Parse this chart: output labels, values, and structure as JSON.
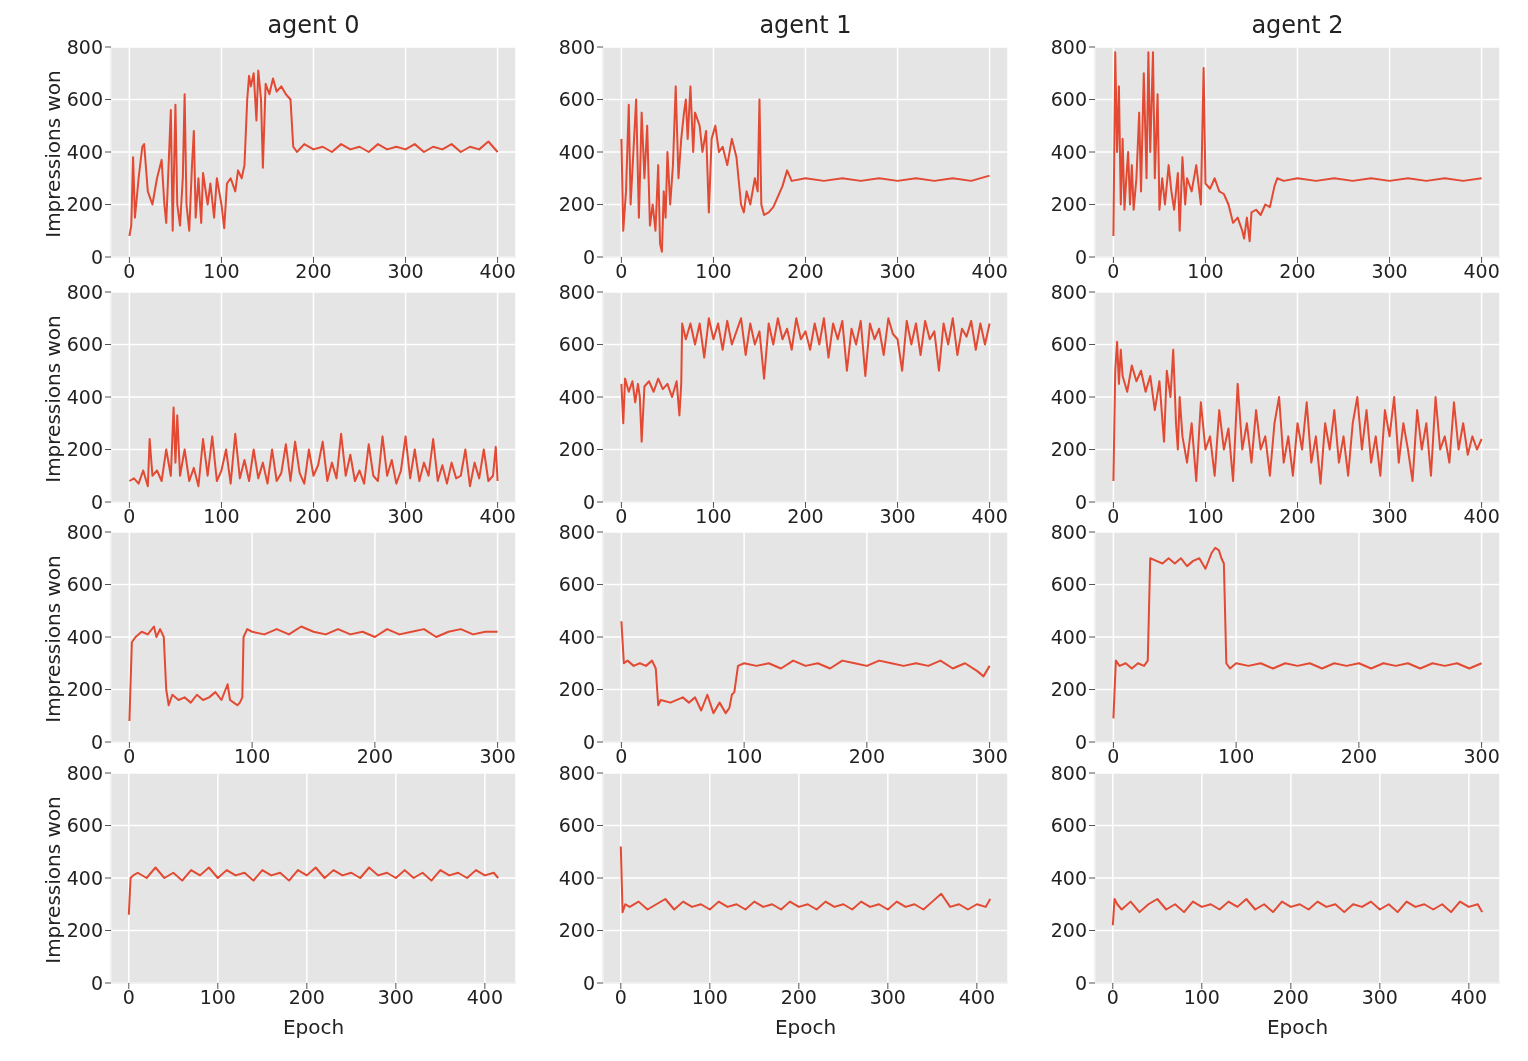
{
  "chart_data": [
    {
      "type": "line",
      "title": "agent 0",
      "ylabel": "Impressions won",
      "color": "#e24a33",
      "xlim": [
        -20,
        420
      ],
      "xticks": [
        0,
        100,
        200,
        300,
        400
      ],
      "ylim": [
        0,
        800
      ],
      "yticks": [
        0,
        200,
        400,
        600,
        800
      ],
      "grid": true,
      "x": [
        0,
        2,
        4,
        6,
        10,
        14,
        16,
        20,
        25,
        30,
        35,
        38,
        40,
        42,
        45,
        47,
        50,
        52,
        55,
        58,
        60,
        62,
        65,
        68,
        70,
        72,
        75,
        78,
        80,
        85,
        88,
        92,
        95,
        100,
        103,
        106,
        110,
        115,
        118,
        122,
        125,
        128,
        130,
        132,
        135,
        138,
        140,
        143,
        145,
        148,
        152,
        156,
        160,
        165,
        170,
        175,
        178,
        182,
        190,
        200,
        210,
        220,
        230,
        240,
        250,
        260,
        270,
        280,
        290,
        300,
        310,
        320,
        330,
        340,
        350,
        360,
        370,
        380,
        390,
        400
      ],
      "values": [
        80,
        120,
        380,
        150,
        300,
        420,
        430,
        250,
        200,
        300,
        370,
        200,
        130,
        300,
        560,
        100,
        580,
        200,
        120,
        300,
        620,
        200,
        100,
        350,
        480,
        150,
        300,
        130,
        320,
        200,
        280,
        150,
        300,
        200,
        110,
        280,
        300,
        250,
        330,
        300,
        350,
        600,
        690,
        650,
        700,
        520,
        710,
        600,
        340,
        660,
        620,
        680,
        630,
        650,
        620,
        600,
        420,
        400,
        430,
        410,
        420,
        400,
        430,
        410,
        420,
        400,
        430,
        410,
        420,
        410,
        430,
        400,
        420,
        410,
        430,
        400,
        420,
        410,
        440,
        400
      ]
    },
    {
      "type": "line",
      "title": "agent 1",
      "color": "#e24a33",
      "xlim": [
        -20,
        420
      ],
      "xticks": [
        0,
        100,
        200,
        300,
        400
      ],
      "ylim": [
        0,
        800
      ],
      "yticks": [
        0,
        200,
        400,
        600,
        800
      ],
      "grid": true,
      "x": [
        0,
        2,
        5,
        8,
        10,
        13,
        16,
        19,
        22,
        25,
        28,
        31,
        34,
        37,
        40,
        42,
        44,
        46,
        48,
        50,
        53,
        56,
        59,
        62,
        65,
        68,
        70,
        72,
        75,
        78,
        80,
        85,
        88,
        92,
        95,
        98,
        102,
        106,
        110,
        115,
        120,
        125,
        130,
        133,
        136,
        140,
        145,
        148,
        150,
        152,
        155,
        160,
        165,
        170,
        175,
        180,
        185,
        200,
        220,
        240,
        260,
        280,
        300,
        320,
        340,
        360,
        380,
        400
      ],
      "values": [
        450,
        100,
        250,
        580,
        200,
        400,
        600,
        150,
        550,
        300,
        500,
        120,
        200,
        100,
        350,
        50,
        20,
        250,
        150,
        400,
        200,
        350,
        650,
        300,
        450,
        550,
        600,
        450,
        650,
        400,
        550,
        500,
        400,
        480,
        170,
        450,
        500,
        400,
        420,
        350,
        450,
        380,
        200,
        170,
        250,
        200,
        300,
        250,
        600,
        200,
        160,
        170,
        190,
        230,
        270,
        330,
        290,
        300,
        290,
        300,
        290,
        300,
        290,
        300,
        290,
        300,
        290,
        310
      ]
    },
    {
      "type": "line",
      "title": "agent 2",
      "color": "#e24a33",
      "xlim": [
        -20,
        420
      ],
      "xticks": [
        0,
        100,
        200,
        300,
        400
      ],
      "ylim": [
        0,
        800
      ],
      "yticks": [
        0,
        200,
        400,
        600,
        800
      ],
      "grid": true,
      "x": [
        0,
        2,
        4,
        6,
        8,
        10,
        12,
        14,
        16,
        18,
        20,
        22,
        25,
        28,
        30,
        33,
        36,
        38,
        40,
        43,
        45,
        48,
        50,
        53,
        56,
        60,
        63,
        66,
        70,
        72,
        75,
        78,
        80,
        85,
        90,
        95,
        98,
        100,
        105,
        110,
        115,
        120,
        125,
        130,
        135,
        140,
        142,
        145,
        148,
        150,
        155,
        160,
        165,
        170,
        175,
        178,
        185,
        200,
        220,
        240,
        260,
        280,
        300,
        320,
        340,
        360,
        380,
        400
      ],
      "values": [
        80,
        780,
        400,
        650,
        200,
        450,
        180,
        300,
        400,
        200,
        350,
        180,
        300,
        550,
        250,
        700,
        300,
        780,
        400,
        780,
        300,
        620,
        180,
        300,
        200,
        350,
        250,
        180,
        320,
        100,
        380,
        200,
        300,
        250,
        350,
        200,
        720,
        280,
        260,
        300,
        250,
        240,
        200,
        130,
        150,
        100,
        70,
        150,
        60,
        170,
        180,
        160,
        200,
        190,
        270,
        300,
        290,
        300,
        290,
        300,
        290,
        300,
        290,
        300,
        290,
        300,
        290,
        300
      ]
    },
    {
      "type": "line",
      "ylabel": "Impressions won",
      "color": "#e24a33",
      "xlim": [
        -20,
        420
      ],
      "xticks": [
        0,
        100,
        200,
        300,
        400
      ],
      "ylim": [
        0,
        800
      ],
      "yticks": [
        0,
        200,
        400,
        600,
        800
      ],
      "grid": true,
      "x": [
        0,
        5,
        10,
        15,
        20,
        22,
        25,
        30,
        35,
        40,
        45,
        48,
        50,
        52,
        55,
        60,
        65,
        70,
        75,
        80,
        85,
        90,
        95,
        100,
        105,
        110,
        115,
        120,
        125,
        130,
        135,
        140,
        145,
        150,
        155,
        160,
        165,
        170,
        175,
        180,
        185,
        190,
        195,
        200,
        205,
        210,
        215,
        220,
        225,
        230,
        235,
        240,
        245,
        250,
        255,
        260,
        265,
        270,
        275,
        280,
        285,
        290,
        295,
        300,
        305,
        310,
        315,
        320,
        325,
        330,
        335,
        340,
        345,
        350,
        355,
        360,
        365,
        370,
        375,
        380,
        385,
        390,
        395,
        398,
        400
      ],
      "values": [
        80,
        90,
        70,
        120,
        60,
        240,
        100,
        120,
        80,
        200,
        100,
        360,
        150,
        330,
        100,
        200,
        80,
        130,
        60,
        240,
        100,
        250,
        80,
        120,
        200,
        70,
        260,
        90,
        160,
        80,
        200,
        90,
        150,
        70,
        200,
        80,
        110,
        220,
        80,
        230,
        110,
        70,
        200,
        100,
        140,
        230,
        80,
        150,
        90,
        260,
        100,
        180,
        80,
        120,
        70,
        220,
        100,
        80,
        250,
        100,
        160,
        70,
        120,
        250,
        90,
        200,
        80,
        150,
        100,
        240,
        80,
        140,
        70,
        150,
        90,
        100,
        200,
        60,
        150,
        90,
        200,
        80,
        100,
        210,
        80
      ]
    },
    {
      "type": "line",
      "color": "#e24a33",
      "xlim": [
        -20,
        420
      ],
      "xticks": [
        0,
        100,
        200,
        300,
        400
      ],
      "ylim": [
        0,
        800
      ],
      "yticks": [
        0,
        200,
        400,
        600,
        800
      ],
      "grid": true,
      "x": [
        0,
        2,
        4,
        8,
        12,
        15,
        18,
        20,
        22,
        25,
        30,
        35,
        40,
        45,
        50,
        55,
        60,
        63,
        65,
        66,
        70,
        75,
        80,
        85,
        90,
        95,
        100,
        105,
        110,
        115,
        120,
        125,
        130,
        135,
        140,
        145,
        150,
        155,
        160,
        165,
        170,
        175,
        180,
        185,
        190,
        195,
        200,
        205,
        210,
        215,
        220,
        225,
        230,
        235,
        240,
        245,
        250,
        255,
        260,
        265,
        270,
        275,
        280,
        285,
        290,
        295,
        300,
        305,
        310,
        315,
        320,
        325,
        330,
        335,
        340,
        345,
        350,
        355,
        360,
        365,
        370,
        375,
        380,
        385,
        390,
        395,
        400
      ],
      "values": [
        450,
        300,
        470,
        420,
        460,
        380,
        450,
        400,
        230,
        440,
        460,
        420,
        470,
        430,
        450,
        400,
        460,
        330,
        450,
        680,
        620,
        680,
        600,
        680,
        550,
        700,
        620,
        680,
        580,
        690,
        600,
        650,
        700,
        560,
        680,
        600,
        650,
        470,
        680,
        600,
        700,
        620,
        660,
        580,
        700,
        620,
        650,
        580,
        680,
        600,
        700,
        550,
        680,
        620,
        690,
        500,
        660,
        600,
        690,
        480,
        680,
        620,
        660,
        560,
        700,
        640,
        620,
        500,
        690,
        600,
        680,
        560,
        690,
        620,
        650,
        500,
        680,
        600,
        700,
        560,
        660,
        630,
        690,
        580,
        680,
        600,
        680
      ]
    },
    {
      "type": "line",
      "color": "#e24a33",
      "xlim": [
        -20,
        420
      ],
      "xticks": [
        0,
        100,
        200,
        300,
        400
      ],
      "ylim": [
        0,
        800
      ],
      "yticks": [
        0,
        200,
        400,
        600,
        800
      ],
      "grid": true,
      "x": [
        0,
        2,
        4,
        6,
        8,
        10,
        15,
        20,
        25,
        30,
        35,
        40,
        45,
        50,
        55,
        58,
        62,
        65,
        68,
        70,
        72,
        75,
        80,
        85,
        90,
        95,
        100,
        105,
        110,
        115,
        120,
        125,
        130,
        135,
        140,
        145,
        150,
        155,
        160,
        165,
        170,
        175,
        180,
        185,
        190,
        195,
        200,
        205,
        210,
        215,
        220,
        225,
        230,
        235,
        240,
        245,
        250,
        255,
        260,
        265,
        270,
        275,
        280,
        285,
        290,
        295,
        300,
        305,
        310,
        315,
        320,
        325,
        330,
        335,
        340,
        345,
        350,
        355,
        360,
        365,
        370,
        375,
        380,
        385,
        390,
        395,
        400
      ],
      "values": [
        80,
        500,
        610,
        450,
        580,
        480,
        420,
        520,
        460,
        500,
        420,
        480,
        350,
        460,
        230,
        500,
        400,
        580,
        300,
        200,
        400,
        250,
        150,
        300,
        80,
        380,
        200,
        250,
        100,
        350,
        200,
        280,
        80,
        450,
        200,
        300,
        150,
        350,
        200,
        250,
        100,
        300,
        400,
        150,
        250,
        100,
        300,
        200,
        380,
        150,
        250,
        70,
        300,
        200,
        350,
        150,
        250,
        100,
        300,
        400,
        200,
        350,
        150,
        250,
        100,
        350,
        250,
        400,
        150,
        300,
        200,
        80,
        350,
        200,
        300,
        100,
        400,
        200,
        250,
        150,
        380,
        200,
        300,
        180,
        250,
        200,
        240
      ]
    },
    {
      "type": "line",
      "ylabel": "Impressions won",
      "color": "#e24a33",
      "xlim": [
        -15,
        315
      ],
      "xticks": [
        0,
        100,
        200,
        300
      ],
      "ylim": [
        0,
        800
      ],
      "yticks": [
        0,
        200,
        400,
        600,
        800
      ],
      "grid": true,
      "x": [
        0,
        2,
        5,
        10,
        15,
        20,
        22,
        25,
        28,
        30,
        32,
        35,
        40,
        45,
        50,
        55,
        60,
        65,
        70,
        75,
        80,
        82,
        85,
        88,
        90,
        92,
        93,
        96,
        100,
        110,
        120,
        130,
        140,
        150,
        160,
        170,
        180,
        190,
        200,
        210,
        220,
        230,
        240,
        250,
        260,
        270,
        280,
        290,
        300
      ],
      "values": [
        80,
        380,
        400,
        420,
        410,
        440,
        400,
        430,
        400,
        200,
        140,
        180,
        160,
        170,
        150,
        180,
        160,
        170,
        190,
        160,
        220,
        160,
        150,
        140,
        150,
        170,
        400,
        430,
        420,
        410,
        430,
        410,
        440,
        420,
        410,
        430,
        410,
        420,
        400,
        430,
        410,
        420,
        430,
        400,
        420,
        430,
        410,
        420,
        420
      ]
    },
    {
      "type": "line",
      "color": "#e24a33",
      "xlim": [
        -15,
        315
      ],
      "xticks": [
        0,
        100,
        200,
        300
      ],
      "ylim": [
        0,
        800
      ],
      "yticks": [
        0,
        200,
        400,
        600,
        800
      ],
      "grid": true,
      "x": [
        0,
        2,
        5,
        10,
        15,
        20,
        25,
        28,
        30,
        32,
        40,
        50,
        55,
        60,
        65,
        70,
        75,
        80,
        85,
        88,
        90,
        92,
        95,
        100,
        110,
        120,
        130,
        140,
        150,
        160,
        170,
        180,
        190,
        200,
        210,
        220,
        230,
        240,
        250,
        260,
        270,
        280,
        290,
        295,
        300
      ],
      "values": [
        460,
        300,
        310,
        290,
        300,
        290,
        310,
        280,
        140,
        160,
        150,
        170,
        150,
        170,
        120,
        180,
        110,
        150,
        110,
        130,
        180,
        190,
        290,
        300,
        290,
        300,
        280,
        310,
        290,
        300,
        280,
        310,
        300,
        290,
        310,
        300,
        290,
        300,
        290,
        310,
        280,
        300,
        270,
        250,
        290
      ]
    },
    {
      "type": "line",
      "color": "#e24a33",
      "xlim": [
        -15,
        315
      ],
      "xticks": [
        0,
        100,
        200,
        300
      ],
      "ylim": [
        0,
        800
      ],
      "yticks": [
        0,
        200,
        400,
        600,
        800
      ],
      "grid": true,
      "x": [
        0,
        2,
        5,
        10,
        15,
        20,
        25,
        28,
        30,
        35,
        40,
        45,
        50,
        55,
        60,
        65,
        70,
        75,
        80,
        83,
        86,
        88,
        90,
        92,
        95,
        100,
        110,
        120,
        130,
        140,
        150,
        160,
        170,
        180,
        190,
        200,
        210,
        220,
        230,
        240,
        250,
        260,
        270,
        280,
        290,
        300
      ],
      "values": [
        90,
        310,
        290,
        300,
        280,
        300,
        290,
        310,
        700,
        690,
        680,
        700,
        680,
        700,
        670,
        690,
        700,
        660,
        720,
        740,
        730,
        700,
        680,
        300,
        280,
        300,
        290,
        300,
        280,
        300,
        290,
        300,
        280,
        300,
        290,
        300,
        280,
        300,
        290,
        300,
        280,
        300,
        290,
        300,
        280,
        300
      ]
    },
    {
      "type": "line",
      "ylabel": "Impressions won",
      "xlabel": "Epoch",
      "color": "#e24a33",
      "xlim": [
        -20,
        435
      ],
      "xticks": [
        0,
        100,
        200,
        300,
        400
      ],
      "ylim": [
        0,
        800
      ],
      "yticks": [
        0,
        200,
        400,
        600,
        800
      ],
      "grid": true,
      "x": [
        0,
        2,
        5,
        10,
        20,
        30,
        40,
        50,
        60,
        70,
        80,
        90,
        100,
        110,
        120,
        130,
        140,
        150,
        160,
        170,
        180,
        190,
        200,
        210,
        220,
        230,
        240,
        250,
        260,
        270,
        280,
        290,
        300,
        310,
        320,
        330,
        340,
        350,
        360,
        370,
        380,
        390,
        400,
        410,
        415
      ],
      "values": [
        260,
        400,
        410,
        420,
        400,
        440,
        400,
        420,
        390,
        430,
        410,
        440,
        400,
        430,
        410,
        420,
        390,
        430,
        410,
        420,
        390,
        430,
        410,
        440,
        400,
        430,
        410,
        420,
        400,
        440,
        410,
        420,
        400,
        430,
        400,
        420,
        390,
        430,
        410,
        420,
        400,
        430,
        410,
        420,
        400
      ]
    },
    {
      "type": "line",
      "xlabel": "Epoch",
      "color": "#e24a33",
      "xlim": [
        -20,
        435
      ],
      "xticks": [
        0,
        100,
        200,
        300,
        400
      ],
      "ylim": [
        0,
        800
      ],
      "yticks": [
        0,
        200,
        400,
        600,
        800
      ],
      "grid": true,
      "x": [
        0,
        2,
        5,
        10,
        20,
        30,
        40,
        50,
        60,
        70,
        80,
        90,
        100,
        110,
        120,
        130,
        140,
        150,
        160,
        170,
        180,
        190,
        200,
        210,
        220,
        230,
        240,
        250,
        260,
        270,
        280,
        290,
        300,
        310,
        320,
        330,
        340,
        350,
        360,
        370,
        380,
        390,
        400,
        410,
        415
      ],
      "values": [
        520,
        270,
        300,
        290,
        310,
        280,
        300,
        320,
        280,
        310,
        290,
        300,
        280,
        310,
        290,
        300,
        280,
        310,
        290,
        300,
        280,
        310,
        290,
        300,
        280,
        310,
        290,
        300,
        280,
        310,
        290,
        300,
        280,
        310,
        290,
        300,
        280,
        310,
        340,
        290,
        300,
        280,
        300,
        290,
        320
      ]
    },
    {
      "type": "line",
      "xlabel": "Epoch",
      "color": "#e24a33",
      "xlim": [
        -20,
        435
      ],
      "xticks": [
        0,
        100,
        200,
        300,
        400
      ],
      "ylim": [
        0,
        800
      ],
      "yticks": [
        0,
        200,
        400,
        600,
        800
      ],
      "grid": true,
      "x": [
        0,
        2,
        5,
        10,
        20,
        30,
        40,
        50,
        60,
        70,
        80,
        90,
        100,
        110,
        120,
        130,
        140,
        150,
        160,
        170,
        180,
        190,
        200,
        210,
        220,
        230,
        240,
        250,
        260,
        270,
        280,
        290,
        300,
        310,
        320,
        330,
        340,
        350,
        360,
        370,
        380,
        390,
        400,
        410,
        415
      ],
      "values": [
        220,
        320,
        300,
        280,
        310,
        270,
        300,
        320,
        280,
        300,
        270,
        310,
        290,
        300,
        280,
        310,
        290,
        320,
        280,
        300,
        270,
        310,
        290,
        300,
        280,
        310,
        290,
        300,
        270,
        300,
        290,
        310,
        280,
        300,
        270,
        310,
        290,
        300,
        280,
        300,
        270,
        310,
        290,
        300,
        270
      ]
    }
  ]
}
